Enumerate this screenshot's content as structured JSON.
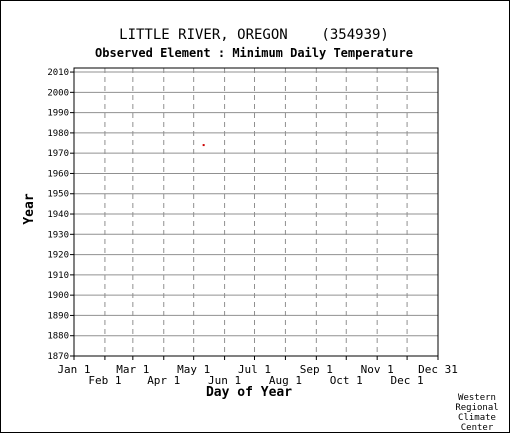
{
  "chart_data": {
    "type": "scatter",
    "title": "LITTLE RIVER, OREGON    (354939)",
    "subtitle": "Observed Element : Minimum Daily Temperature",
    "xlabel": "Day of Year",
    "ylabel": "Year",
    "credit": [
      "Western",
      "Regional",
      "Climate",
      "Center"
    ],
    "xlim": [
      1,
      366
    ],
    "ylim": [
      1870,
      2012
    ],
    "x_ticks": [
      {
        "label": "Jan 1",
        "day": 1
      },
      {
        "label": "Feb 1",
        "day": 32
      },
      {
        "label": "Mar 1",
        "day": 60
      },
      {
        "label": "Apr 1",
        "day": 91
      },
      {
        "label": "May 1",
        "day": 121
      },
      {
        "label": "Jun 1",
        "day": 152
      },
      {
        "label": "Jul 1",
        "day": 182
      },
      {
        "label": "Aug 1",
        "day": 213
      },
      {
        "label": "Sep 1",
        "day": 244
      },
      {
        "label": "Oct 1",
        "day": 274
      },
      {
        "label": "Nov 1",
        "day": 305
      },
      {
        "label": "Dec 1",
        "day": 335
      },
      {
        "label": "Dec 31",
        "day": 366
      }
    ],
    "y_ticks": [
      1870,
      1880,
      1890,
      1900,
      1910,
      1920,
      1930,
      1940,
      1950,
      1960,
      1970,
      1980,
      1990,
      2000,
      2010
    ],
    "grid": true,
    "points": [
      {
        "day": 131,
        "year": 1974
      }
    ],
    "colors": {
      "axis": "#000000",
      "grid": "#909090",
      "point": "#cc0000"
    }
  }
}
